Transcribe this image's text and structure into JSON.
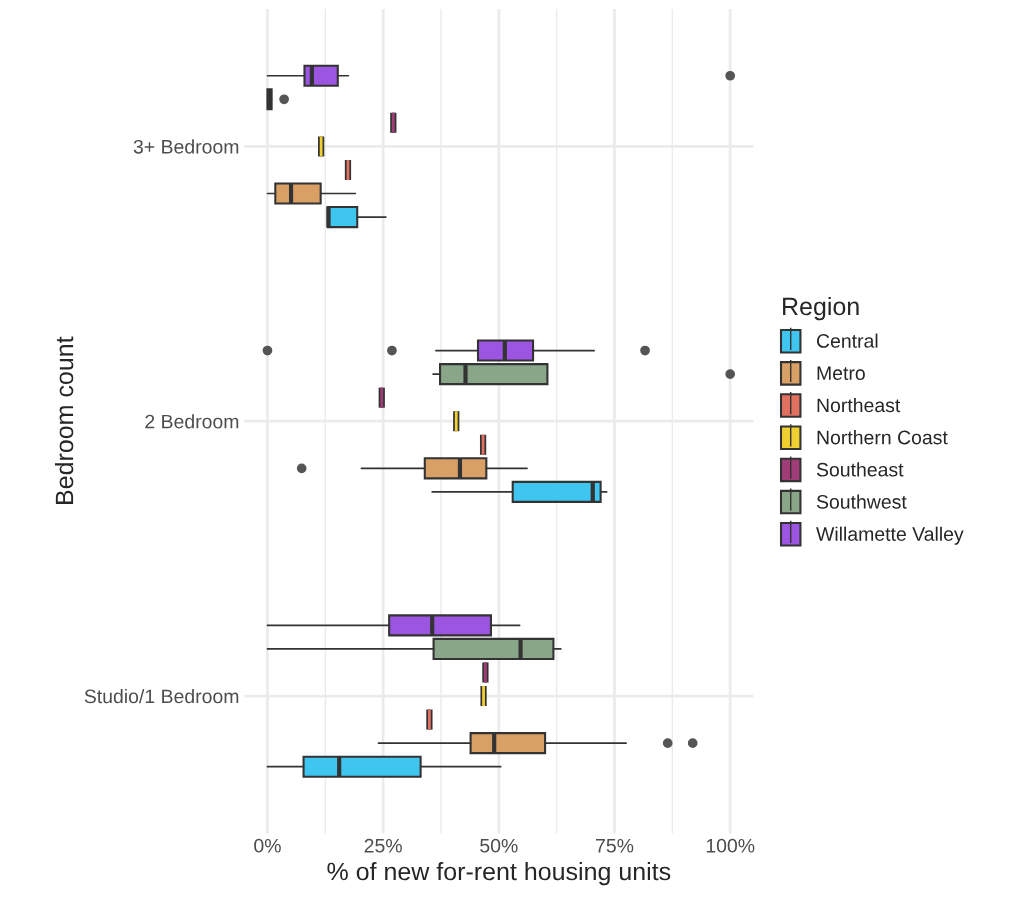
{
  "chart_data": {
    "type": "box",
    "orientation": "horizontal",
    "xlabel": "% of new for-rent housing units",
    "ylabel": "Bedroom count",
    "legend_title": "Region",
    "legend": "right",
    "grid": true,
    "categories": [
      "3+ Bedroom",
      "2 Bedroom",
      "Studio/1 Bedroom"
    ],
    "xlim": [
      -5,
      105
    ],
    "xticks": [
      {
        "value": 0,
        "label": "0%"
      },
      {
        "value": 25,
        "label": "25%"
      },
      {
        "value": 50,
        "label": "50%"
      },
      {
        "value": 75,
        "label": "75%"
      },
      {
        "value": 100,
        "label": "100%"
      }
    ],
    "series": [
      {
        "name": "Central",
        "color": "#3ec5f0",
        "boxes": [
          {
            "low": 13.0,
            "q1": 13.0,
            "median": 13.2,
            "q3": 19.4,
            "high": 25.6
          },
          {
            "low": 35.6,
            "q1": 53.0,
            "median": 70.3,
            "q3": 72.0,
            "high": 73.3
          },
          {
            "low": 0,
            "q1": 7.8,
            "median": 15.5,
            "q3": 33.1,
            "high": 50.4
          }
        ]
      },
      {
        "name": "Metro",
        "color": "#d9a066",
        "boxes": [
          {
            "low": 0,
            "q1": 1.7,
            "median": 5.1,
            "q3": 11.5,
            "high": 19.0
          },
          {
            "low": 20.3,
            "q1": 34.0,
            "median": 41.6,
            "q3": 47.3,
            "high": 56.1,
            "outliers": [
              7.4
            ]
          },
          {
            "low": 24.0,
            "q1": 43.9,
            "median": 49.0,
            "q3": 60.0,
            "high": 77.5,
            "outliers": [
              86.5,
              91.9
            ]
          }
        ]
      },
      {
        "name": "Northeast",
        "color": "#e07060",
        "boxes": [
          {
            "low": 17.4,
            "q1": 17.4,
            "median": 17.4,
            "q3": 17.4,
            "high": 17.4
          },
          {
            "low": 46.6,
            "q1": 46.6,
            "median": 46.6,
            "q3": 46.6,
            "high": 46.6
          },
          {
            "low": 35.0,
            "q1": 35.0,
            "median": 35.0,
            "q3": 35.0,
            "high": 35.0
          }
        ]
      },
      {
        "name": "Northern Coast",
        "color": "#f0d030",
        "boxes": [
          {
            "low": 11.6,
            "q1": 11.6,
            "median": 11.6,
            "q3": 11.6,
            "high": 11.6
          },
          {
            "low": 40.8,
            "q1": 40.8,
            "median": 40.8,
            "q3": 40.8,
            "high": 40.8
          },
          {
            "low": 46.7,
            "q1": 46.7,
            "median": 46.7,
            "q3": 46.7,
            "high": 46.7
          }
        ]
      },
      {
        "name": "Southeast",
        "color": "#a03c78",
        "boxes": [
          {
            "low": 27.2,
            "q1": 27.2,
            "median": 27.2,
            "q3": 27.2,
            "high": 27.2
          },
          {
            "low": 24.7,
            "q1": 24.7,
            "median": 24.7,
            "q3": 24.7,
            "high": 24.7
          },
          {
            "low": 47.1,
            "q1": 47.1,
            "median": 47.1,
            "q3": 47.1,
            "high": 47.1
          }
        ]
      },
      {
        "name": "Southwest",
        "color": "#8aa688",
        "boxes": [
          {
            "low": 0,
            "q1": 0,
            "median": 0.4,
            "q3": 0.9,
            "high": 0.9,
            "outliers": [
              3.6
            ]
          },
          {
            "low": 35.8,
            "q1": 37.3,
            "median": 42.8,
            "q3": 60.5,
            "high": 60.5,
            "outliers": [
              100
            ]
          },
          {
            "low": 0,
            "q1": 35.9,
            "median": 54.7,
            "q3": 61.8,
            "high": 63.4
          }
        ]
      },
      {
        "name": "Willamette Valley",
        "color": "#9b55e0",
        "boxes": [
          {
            "low": 0,
            "q1": 8.0,
            "median": 9.6,
            "q3": 15.2,
            "high": 17.5,
            "outliers": [
              100
            ]
          },
          {
            "low": 36.4,
            "q1": 45.5,
            "median": 51.3,
            "q3": 57.4,
            "high": 70.6,
            "outliers": [
              0,
              26.9,
              81.6
            ]
          },
          {
            "low": 0,
            "q1": 26.3,
            "median": 35.6,
            "q3": 48.3,
            "high": 54.5
          }
        ]
      }
    ]
  }
}
